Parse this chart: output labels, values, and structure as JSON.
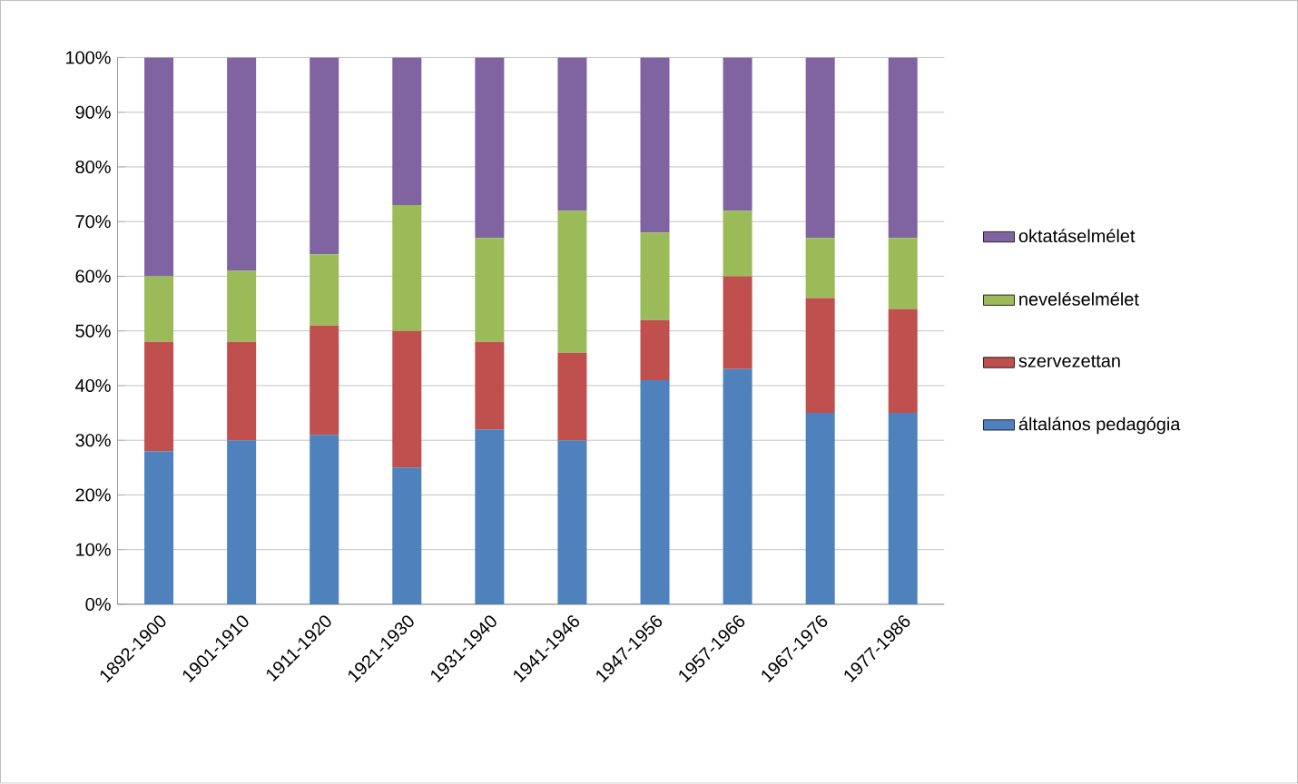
{
  "chart_data": {
    "type": "bar",
    "stacked": true,
    "categories": [
      "1892-1900",
      "1901-1910",
      "1911-1920",
      "1921-1930",
      "1931-1940",
      "1941-1946",
      "1947-1956",
      "1957-1966",
      "1967-1976",
      "1977-1986"
    ],
    "series": [
      {
        "name": "általános pedagógia",
        "color": "#4f81bd",
        "values": [
          28,
          30,
          31,
          25,
          32,
          30,
          41,
          43,
          35,
          35
        ]
      },
      {
        "name": "szervezettan",
        "color": "#c0504d",
        "values": [
          20,
          18,
          20,
          25,
          16,
          16,
          11,
          17,
          21,
          19
        ]
      },
      {
        "name": "neveléselmélet",
        "color": "#9bbb59",
        "values": [
          12,
          13,
          13,
          23,
          19,
          26,
          16,
          12,
          11,
          13
        ]
      },
      {
        "name": "oktatáselmélet",
        "color": "#8064a2",
        "values": [
          40,
          39,
          36,
          27,
          33,
          28,
          32,
          28,
          33,
          33
        ]
      }
    ],
    "ylim": [
      0,
      100
    ],
    "yticks": [
      {
        "value": 0,
        "label": "0%"
      },
      {
        "value": 10,
        "label": "10%"
      },
      {
        "value": 20,
        "label": "20%"
      },
      {
        "value": 30,
        "label": "30%"
      },
      {
        "value": 40,
        "label": "40%"
      },
      {
        "value": 50,
        "label": "50%"
      },
      {
        "value": 60,
        "label": "60%"
      },
      {
        "value": 70,
        "label": "70%"
      },
      {
        "value": 80,
        "label": "80%"
      },
      {
        "value": 90,
        "label": "90%"
      },
      {
        "value": 100,
        "label": "100%"
      }
    ],
    "grid": "y",
    "legend": "right"
  }
}
